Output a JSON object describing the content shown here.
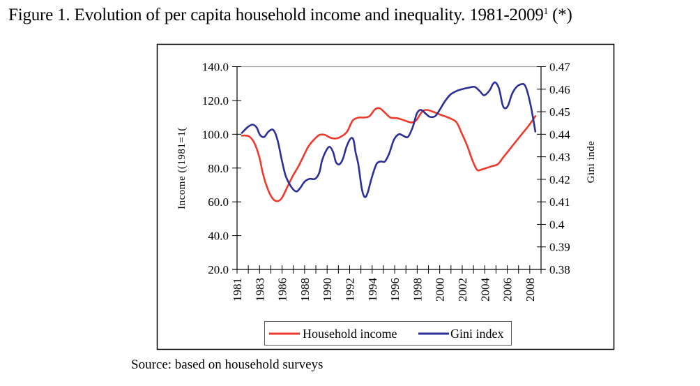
{
  "figure": {
    "title_main": "Figure 1. Evolution of per capita household income and inequality. 1981-2009",
    "title_sup": "1",
    "title_suffix": " (*)",
    "source": "Source: based on household surveys"
  },
  "colors": {
    "income": "#ee3a2c",
    "gini": "#2b2f98",
    "axis": "#000000",
    "gridline": "#a0a0a0"
  },
  "chart_data": {
    "type": "line",
    "title": "Evolution of per capita household income and inequality. 1981-2009",
    "xlabel": "",
    "ylabel": "Income ((1981=1(",
    "y2label": "Gini inde",
    "x_tick_count": 27,
    "x_tick_labels": [
      "1981",
      "1983",
      "1986",
      "1988",
      "1990",
      "1992",
      "1994",
      "1996",
      "1998",
      "2000",
      "2002",
      "2004",
      "2006",
      "2008"
    ],
    "x_tick_label_positions": [
      0,
      2,
      4,
      6,
      8,
      10,
      12,
      14,
      16,
      18,
      20,
      22,
      24,
      26
    ],
    "xlim": [
      0,
      27
    ],
    "ylim": [
      20,
      140
    ],
    "y_ticks": [
      "20.0",
      "40.0",
      "60.0",
      "80.0",
      "100.0",
      "120.0",
      "140.0"
    ],
    "y_tick_values": [
      20,
      40,
      60,
      80,
      100,
      120,
      140
    ],
    "y2lim": [
      0.38,
      0.47
    ],
    "y2_ticks": [
      "0.38",
      "0.39",
      "0.4",
      "0.41",
      "0.42",
      "0.43",
      "0.44",
      "0.45",
      "0.46",
      "0.47"
    ],
    "y2_tick_values": [
      0.38,
      0.39,
      0.4,
      0.41,
      0.42,
      0.43,
      0.44,
      0.45,
      0.46,
      0.47
    ],
    "grid": false,
    "legend_position": "bottom",
    "series": [
      {
        "name": "Household income",
        "axis": "left",
        "x": [
          0.43,
          1.05,
          1.55,
          1.98,
          2.29,
          2.66,
          3.1,
          3.53,
          3.96,
          4.46,
          4.95,
          5.45,
          5.94,
          6.32,
          6.81,
          7.31,
          7.8,
          8.3,
          8.79,
          9.29,
          9.78,
          10.28,
          10.84,
          11.27,
          11.76,
          12.26,
          12.69,
          13.13,
          13.62,
          14.24,
          14.86,
          15.48,
          15.91,
          16.41,
          16.84,
          17.46,
          18.08,
          18.89,
          19.5,
          19.94,
          20.43,
          20.87,
          21.3,
          21.67,
          22.04,
          22.6,
          23.16,
          23.65,
          24.4,
          25.14,
          25.88,
          26.5
        ],
        "values": [
          99.2,
          98.8,
          94.7,
          86.4,
          76.9,
          68.7,
          62.5,
          60.4,
          62.1,
          68.7,
          75.3,
          81.0,
          87.6,
          92.6,
          96.7,
          99.6,
          99.6,
          97.9,
          97.5,
          98.8,
          101.6,
          108.2,
          109.9,
          109.9,
          110.7,
          114.8,
          115.3,
          112.8,
          109.9,
          109.5,
          108.2,
          107.0,
          108.2,
          113.2,
          114.4,
          113.2,
          111.5,
          109.5,
          107.0,
          100.8,
          93.4,
          85.2,
          79.0,
          79.0,
          79.8,
          81.0,
          82.3,
          86.4,
          92.6,
          98.8,
          104.9,
          110.7
        ]
      },
      {
        "name": "Gini index",
        "axis": "right",
        "x": [
          0.43,
          0.93,
          1.36,
          1.73,
          2.04,
          2.41,
          2.79,
          3.22,
          3.59,
          3.96,
          4.33,
          4.83,
          5.26,
          5.57,
          6.01,
          6.44,
          6.93,
          7.31,
          7.55,
          7.93,
          8.24,
          8.54,
          8.79,
          9.1,
          9.41,
          9.72,
          10.09,
          10.34,
          10.53,
          10.77,
          11.08,
          11.33,
          11.58,
          11.95,
          12.38,
          12.76,
          13.13,
          13.5,
          13.93,
          14.37,
          14.74,
          15.17,
          15.6,
          15.98,
          16.35,
          16.78,
          17.15,
          17.59,
          17.96,
          18.45,
          18.95,
          19.5,
          20.06,
          20.62,
          21.11,
          21.55,
          21.92,
          22.29,
          22.54,
          22.72,
          22.97,
          23.28,
          23.59,
          23.84,
          24.09,
          24.46,
          24.89,
          25.33,
          25.57,
          25.82,
          26.13,
          26.5
        ],
        "values": [
          0.4406,
          0.4431,
          0.4443,
          0.4431,
          0.4397,
          0.4388,
          0.4412,
          0.4419,
          0.4375,
          0.4289,
          0.4214,
          0.4165,
          0.4146,
          0.4159,
          0.419,
          0.4202,
          0.4202,
          0.423,
          0.4283,
          0.4329,
          0.4344,
          0.432,
          0.4276,
          0.4267,
          0.4292,
          0.4344,
          0.4381,
          0.4375,
          0.432,
          0.4267,
          0.4159,
          0.4122,
          0.4137,
          0.4205,
          0.4267,
          0.4279,
          0.4279,
          0.4313,
          0.4375,
          0.44,
          0.4394,
          0.4388,
          0.4431,
          0.4493,
          0.4508,
          0.449,
          0.4477,
          0.448,
          0.4505,
          0.4545,
          0.4576,
          0.4592,
          0.4601,
          0.4607,
          0.461,
          0.4592,
          0.4573,
          0.4586,
          0.4604,
          0.4623,
          0.4629,
          0.4601,
          0.453,
          0.4515,
          0.453,
          0.4583,
          0.4613,
          0.4623,
          0.4617,
          0.4583,
          0.4515,
          0.4412
        ]
      }
    ]
  }
}
